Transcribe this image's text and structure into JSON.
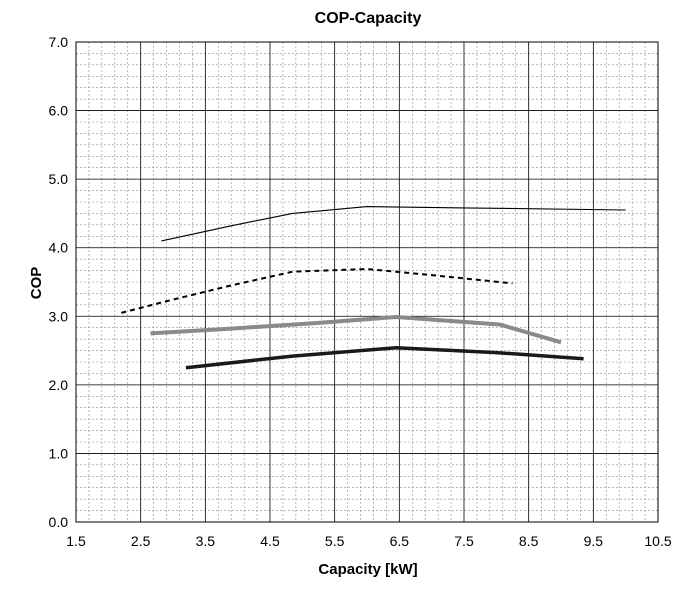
{
  "chart_data": {
    "type": "line",
    "title": "COP-Capacity",
    "xlabel": "Capacity [kW]",
    "ylabel": "COP",
    "xlim": [
      1.5,
      10.5
    ],
    "ylim": [
      0.0,
      7.0
    ],
    "x_ticks": [
      "1.5",
      "2.5",
      "3.5",
      "4.5",
      "5.5",
      "6.5",
      "7.5",
      "8.5",
      "9.5",
      "10.5"
    ],
    "y_ticks": [
      "0.0",
      "1.0",
      "2.0",
      "3.0",
      "4.0",
      "5.0",
      "6.0",
      "7.0"
    ],
    "x_tick_values": [
      1.5,
      2.5,
      3.5,
      4.5,
      5.5,
      6.5,
      7.5,
      8.5,
      9.5,
      10.5
    ],
    "y_tick_values": [
      0,
      1,
      2,
      3,
      4,
      5,
      6,
      7
    ],
    "grid": true,
    "minor_grid": true,
    "series": [
      {
        "style": "thin-solid",
        "color": "#000000",
        "x": [
          2.82,
          3.9,
          4.85,
          6.0,
          7.5,
          10.0
        ],
        "y": [
          4.1,
          4.32,
          4.5,
          4.6,
          4.58,
          4.55
        ]
      },
      {
        "style": "dashed",
        "color": "#000000",
        "x": [
          2.2,
          2.9,
          3.9,
          4.85,
          6.0,
          7.0,
          8.25
        ],
        "y": [
          3.05,
          3.22,
          3.45,
          3.65,
          3.69,
          3.6,
          3.48
        ]
      },
      {
        "style": "thick-gray",
        "color": "#8a8a8a",
        "x": [
          2.65,
          3.9,
          5.2,
          6.45,
          8.05,
          9.0
        ],
        "y": [
          2.75,
          2.82,
          2.9,
          2.99,
          2.88,
          2.62
        ]
      },
      {
        "style": "thick-black",
        "color": "#1a1a1a",
        "x": [
          3.2,
          4.85,
          6.45,
          8.0,
          9.35
        ],
        "y": [
          2.25,
          2.42,
          2.54,
          2.47,
          2.38
        ]
      }
    ]
  }
}
